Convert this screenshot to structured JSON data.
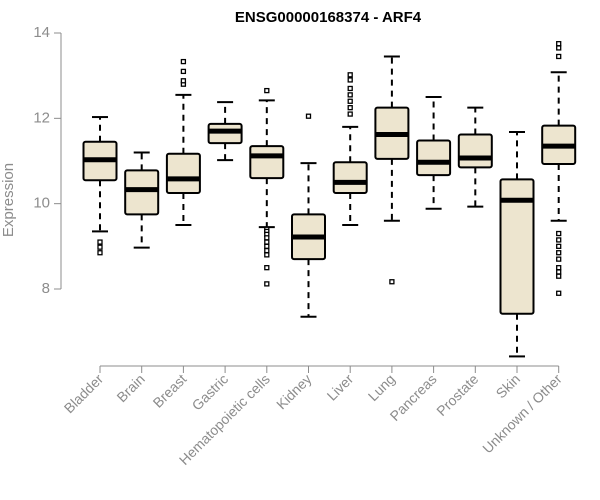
{
  "chart_data": {
    "type": "box",
    "title": "ENSG00000168374 - ARF4",
    "xlabel": "",
    "ylabel": "Expression",
    "ylim": [
      6.0,
      14.2
    ],
    "yticks": [
      8,
      10,
      12,
      14
    ],
    "grid": false,
    "colors": {
      "box_fill": "#ede5cf",
      "stroke": "#000000",
      "axis": "#8c8c8c"
    },
    "categories": [
      "Bladder",
      "Brain",
      "Breast",
      "Gastric",
      "Hematopoietic cells",
      "Kidney",
      "Liver",
      "Lung",
      "Pancreas",
      "Prostate",
      "Skin",
      "Unknown / Other"
    ],
    "boxes": [
      {
        "name": "Bladder",
        "whisker_low": 9.35,
        "q1": 10.55,
        "median": 11.03,
        "q3": 11.45,
        "whisker_high": 12.03,
        "outliers": [
          9.1,
          8.98,
          8.85
        ]
      },
      {
        "name": "Brain",
        "whisker_low": 8.97,
        "q1": 9.75,
        "median": 10.33,
        "q3": 10.78,
        "whisker_high": 11.2,
        "outliers": []
      },
      {
        "name": "Breast",
        "whisker_low": 9.5,
        "q1": 10.25,
        "median": 10.58,
        "q3": 11.17,
        "whisker_high": 12.55,
        "outliers": [
          12.8,
          12.88,
          13.1,
          13.33
        ]
      },
      {
        "name": "Gastric",
        "whisker_low": 11.02,
        "q1": 11.42,
        "median": 11.7,
        "q3": 11.87,
        "whisker_high": 12.38,
        "outliers": []
      },
      {
        "name": "Hematopoietic cells",
        "whisker_low": 9.45,
        "q1": 10.6,
        "median": 11.12,
        "q3": 11.35,
        "whisker_high": 12.42,
        "outliers": [
          12.65,
          9.4,
          9.35,
          9.28,
          9.2,
          9.1,
          9.0,
          8.9,
          8.8,
          8.5,
          8.12
        ]
      },
      {
        "name": "Kidney",
        "whisker_low": 7.35,
        "q1": 8.7,
        "median": 9.22,
        "q3": 9.75,
        "whisker_high": 10.95,
        "outliers": [
          12.05
        ]
      },
      {
        "name": "Liver",
        "whisker_low": 9.5,
        "q1": 10.25,
        "median": 10.5,
        "q3": 10.97,
        "whisker_high": 11.8,
        "outliers": [
          12.1,
          12.25,
          12.4,
          12.55,
          12.7,
          12.9,
          13.02
        ]
      },
      {
        "name": "Lung",
        "whisker_low": 9.6,
        "q1": 11.05,
        "median": 11.62,
        "q3": 12.25,
        "whisker_high": 13.45,
        "outliers": [
          8.17
        ]
      },
      {
        "name": "Pancreas",
        "whisker_low": 9.88,
        "q1": 10.67,
        "median": 10.97,
        "q3": 11.48,
        "whisker_high": 12.5,
        "outliers": []
      },
      {
        "name": "Prostate",
        "whisker_low": 9.93,
        "q1": 10.85,
        "median": 11.07,
        "q3": 11.62,
        "whisker_high": 12.25,
        "outliers": []
      },
      {
        "name": "Skin",
        "whisker_low": 6.42,
        "q1": 7.42,
        "median": 10.08,
        "q3": 10.57,
        "whisker_high": 11.68,
        "outliers": []
      },
      {
        "name": "Unknown / Other",
        "whisker_low": 9.6,
        "q1": 10.93,
        "median": 11.35,
        "q3": 11.83,
        "whisker_high": 13.08,
        "outliers": [
          13.45,
          13.65,
          13.75,
          9.3,
          9.15,
          9.0,
          8.85,
          8.7,
          8.5,
          8.4,
          8.3,
          7.9
        ]
      }
    ]
  }
}
